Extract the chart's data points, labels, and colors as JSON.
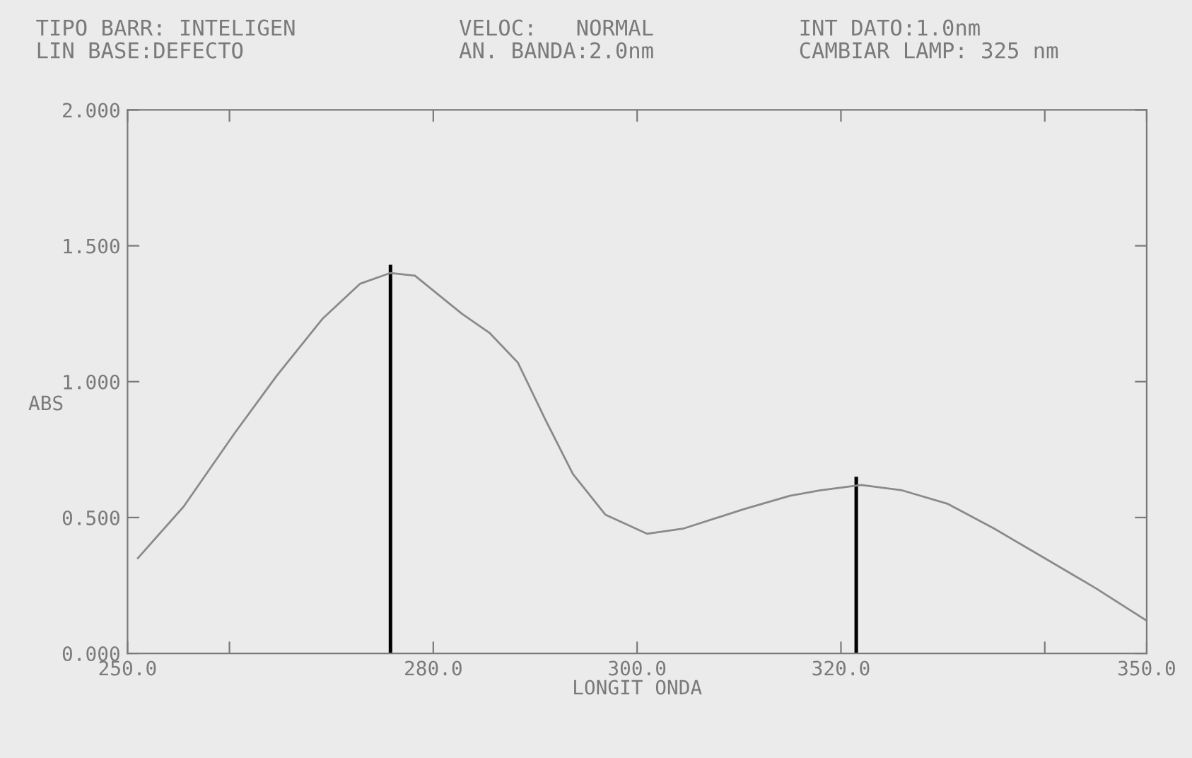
{
  "chart_data": {
    "type": "line",
    "annotations": [
      "TIPO BARR: INTELIGEN",
      "LIN BASE:DEFECTO",
      "VELOC:   NORMAL",
      "AN. BANDA:2.0nm",
      "INT DATO:1.0nm",
      "CAMBIAR LAMP: 325 nm"
    ],
    "xlabel": "LONGIT ONDA",
    "ylabel": "ABS",
    "series": [
      {
        "color": "#8a8a8a",
        "x": [
          251.0,
          255.5,
          260.5,
          264.6,
          269.1,
          272.8,
          275.8,
          278.2,
          282.8,
          285.5,
          288.3,
          291.0,
          293.7,
          296.9,
          301.0,
          304.6,
          310.4,
          315.0,
          318.0,
          322.0,
          326.0,
          330.5,
          335.0,
          340.0,
          345.0,
          350.0
        ],
        "values": [
          0.35,
          0.54,
          0.81,
          1.02,
          1.23,
          1.36,
          1.4,
          1.39,
          1.25,
          1.18,
          1.07,
          0.86,
          0.66,
          0.51,
          0.44,
          0.46,
          0.53,
          0.58,
          0.6,
          0.62,
          0.6,
          0.55,
          0.46,
          0.35,
          0.24,
          0.12
        ]
      },
      {
        "type": "bar",
        "color": "#000000",
        "x": [
          275.8,
          321.5
        ],
        "values": [
          1.43,
          0.65
        ]
      }
    ],
    "xlim": [
      250,
      350
    ],
    "xticks": [
      {
        "value": 250,
        "label": "250.0"
      },
      {
        "value": 260,
        "label": null
      },
      {
        "value": 280,
        "label": "280.0"
      },
      {
        "value": 300,
        "label": "300.0"
      },
      {
        "value": 320,
        "label": "320.0"
      },
      {
        "value": 340,
        "label": null
      },
      {
        "value": 350,
        "label": "350.0"
      }
    ],
    "ylim": [
      0,
      2
    ],
    "yticks": [
      {
        "value": 0,
        "label": "0.000"
      },
      {
        "value": 0.5,
        "label": "0.500"
      },
      {
        "value": 1,
        "label": "1.000"
      },
      {
        "value": 1.5,
        "label": "1.500"
      },
      {
        "value": 2,
        "label": "2.000"
      }
    ],
    "grid": false,
    "legend": false
  }
}
